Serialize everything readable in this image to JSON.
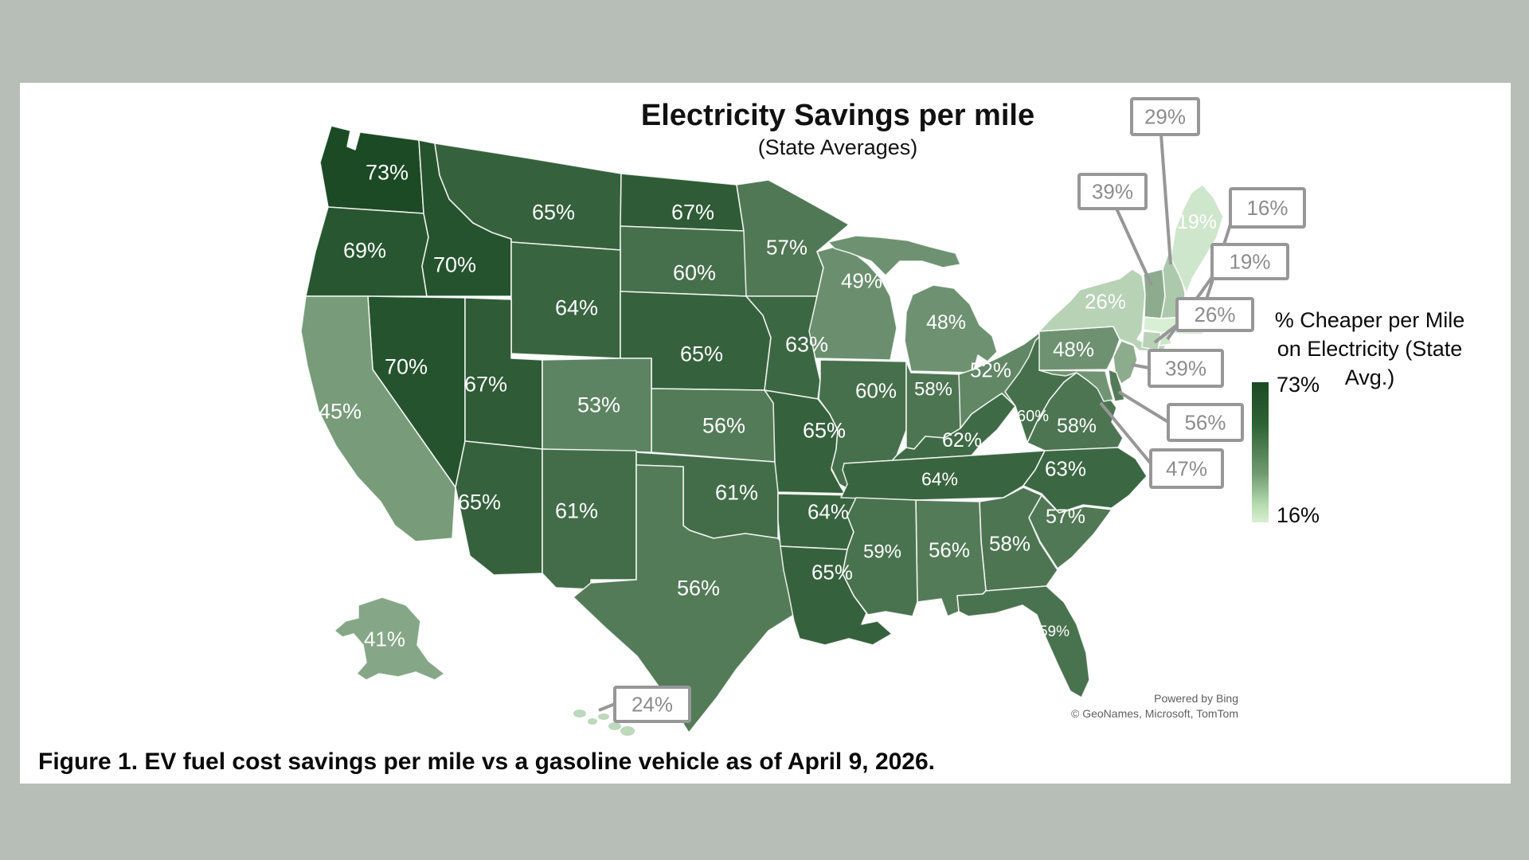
{
  "figure": {
    "title": "Electricity Savings per mile",
    "subtitle": "(State Averages)",
    "caption": "Figure 1. EV fuel cost savings per mile vs a gasoline vehicle as of April 9, 2026.",
    "attribution": {
      "line1": "Powered by Bing",
      "line2": "© GeoNames, Microsoft, TomTom"
    }
  },
  "legend": {
    "title_line1": "% Cheaper per Mile",
    "title_line2": "on Electricity (State Avg.)",
    "max_label": "73%",
    "min_label": "16%"
  },
  "chart_data": {
    "type": "choropleth",
    "title": "Electricity Savings per mile",
    "subtitle": "(State Averages)",
    "region": "United States",
    "unit": "%",
    "value_range": [
      16,
      73
    ],
    "color_min": "#d8efd4",
    "color_max": "#1b4a24",
    "legend_title": "% Cheaper per Mile on Electricity (State Avg.)",
    "states": [
      {
        "code": "WA",
        "name": "Washington",
        "value": 73,
        "label": "73%",
        "callout": false
      },
      {
        "code": "OR",
        "name": "Oregon",
        "value": 69,
        "label": "69%",
        "callout": false
      },
      {
        "code": "CA",
        "name": "California",
        "value": 45,
        "label": "45%",
        "callout": false
      },
      {
        "code": "NV",
        "name": "Nevada",
        "value": 70,
        "label": "70%",
        "callout": false
      },
      {
        "code": "ID",
        "name": "Idaho",
        "value": 70,
        "label": "70%",
        "callout": false
      },
      {
        "code": "MT",
        "name": "Montana",
        "value": 65,
        "label": "65%",
        "callout": false
      },
      {
        "code": "WY",
        "name": "Wyoming",
        "value": 64,
        "label": "64%",
        "callout": false
      },
      {
        "code": "UT",
        "name": "Utah",
        "value": 67,
        "label": "67%",
        "callout": false
      },
      {
        "code": "CO",
        "name": "Colorado",
        "value": 53,
        "label": "53%",
        "callout": false
      },
      {
        "code": "AZ",
        "name": "Arizona",
        "value": 65,
        "label": "65%",
        "callout": false
      },
      {
        "code": "NM",
        "name": "New Mexico",
        "value": 61,
        "label": "61%",
        "callout": false
      },
      {
        "code": "ND",
        "name": "North Dakota",
        "value": 67,
        "label": "67%",
        "callout": false
      },
      {
        "code": "SD",
        "name": "South Dakota",
        "value": 60,
        "label": "60%",
        "callout": false
      },
      {
        "code": "NE",
        "name": "Nebraska",
        "value": 65,
        "label": "65%",
        "callout": false
      },
      {
        "code": "KS",
        "name": "Kansas",
        "value": 56,
        "label": "56%",
        "callout": false
      },
      {
        "code": "OK",
        "name": "Oklahoma",
        "value": 61,
        "label": "61%",
        "callout": false
      },
      {
        "code": "TX",
        "name": "Texas",
        "value": 56,
        "label": "56%",
        "callout": false
      },
      {
        "code": "MN",
        "name": "Minnesota",
        "value": 57,
        "label": "57%",
        "callout": false
      },
      {
        "code": "IA",
        "name": "Iowa",
        "value": 63,
        "label": "63%",
        "callout": false
      },
      {
        "code": "MO",
        "name": "Missouri",
        "value": 65,
        "label": "65%",
        "callout": false
      },
      {
        "code": "AR",
        "name": "Arkansas",
        "value": 64,
        "label": "64%",
        "callout": false
      },
      {
        "code": "LA",
        "name": "Louisiana",
        "value": 65,
        "label": "65%",
        "callout": false
      },
      {
        "code": "WI",
        "name": "Wisconsin",
        "value": 49,
        "label": "49%",
        "callout": false
      },
      {
        "code": "IL",
        "name": "Illinois",
        "value": 60,
        "label": "60%",
        "callout": false
      },
      {
        "code": "MI",
        "name": "Michigan",
        "value": 48,
        "label": "48%",
        "callout": false
      },
      {
        "code": "IN",
        "name": "Indiana",
        "value": 58,
        "label": "58%",
        "callout": false
      },
      {
        "code": "OH",
        "name": "Ohio",
        "value": 52,
        "label": "52%",
        "callout": false
      },
      {
        "code": "KY",
        "name": "Kentucky",
        "value": 62,
        "label": "62%",
        "callout": false
      },
      {
        "code": "TN",
        "name": "Tennessee",
        "value": 64,
        "label": "64%",
        "callout": false
      },
      {
        "code": "MS",
        "name": "Mississippi",
        "value": 59,
        "label": "59%",
        "callout": false
      },
      {
        "code": "AL",
        "name": "Alabama",
        "value": 56,
        "label": "56%",
        "callout": false
      },
      {
        "code": "GA",
        "name": "Georgia",
        "value": 58,
        "label": "58%",
        "callout": false
      },
      {
        "code": "FL",
        "name": "Florida",
        "value": 59,
        "label": "59%",
        "callout": false
      },
      {
        "code": "SC",
        "name": "South Carolina",
        "value": 57,
        "label": "57%",
        "callout": false
      },
      {
        "code": "NC",
        "name": "North Carolina",
        "value": 63,
        "label": "63%",
        "callout": false
      },
      {
        "code": "VA",
        "name": "Virginia",
        "value": 58,
        "label": "58%",
        "callout": false
      },
      {
        "code": "WV",
        "name": "West Virginia",
        "value": 60,
        "label": "60%",
        "callout": false
      },
      {
        "code": "MD",
        "name": "Maryland",
        "value": 47,
        "label": "47%",
        "callout": true
      },
      {
        "code": "DE",
        "name": "Delaware",
        "value": 56,
        "label": "56%",
        "callout": true
      },
      {
        "code": "NJ",
        "name": "New Jersey",
        "value": 39,
        "label": "39%",
        "callout": true
      },
      {
        "code": "PA",
        "name": "Pennsylvania",
        "value": 48,
        "label": "48%",
        "callout": false
      },
      {
        "code": "NY",
        "name": "New York",
        "value": 26,
        "label": "26%",
        "callout": false
      },
      {
        "code": "CT",
        "name": "Connecticut",
        "value": 26,
        "label": "26%",
        "callout": true
      },
      {
        "code": "RI",
        "name": "Rhode Island",
        "value": 19,
        "label": "19%",
        "callout": true
      },
      {
        "code": "MA",
        "name": "Massachusetts",
        "value": 16,
        "label": "16%",
        "callout": true
      },
      {
        "code": "VT",
        "name": "Vermont",
        "value": 39,
        "label": "39%",
        "callout": true
      },
      {
        "code": "NH",
        "name": "New Hampshire",
        "value": 29,
        "label": "29%",
        "callout": true
      },
      {
        "code": "ME",
        "name": "Maine",
        "value": 19,
        "label": "19%",
        "callout": false
      },
      {
        "code": "AK",
        "name": "Alaska",
        "value": 41,
        "label": "41%",
        "callout": false
      },
      {
        "code": "HI",
        "name": "Hawaii",
        "value": 24,
        "label": "24%",
        "callout": true
      }
    ]
  }
}
